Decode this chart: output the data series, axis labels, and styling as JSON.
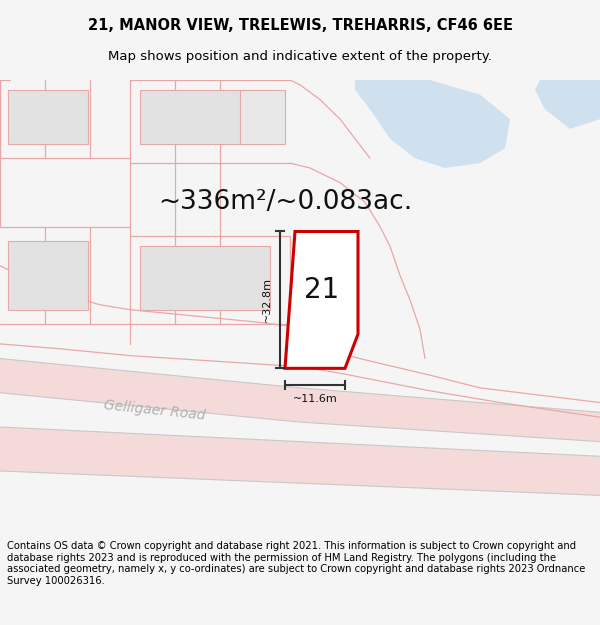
{
  "title_line1": "21, MANOR VIEW, TRELEWIS, TREHARRIS, CF46 6EE",
  "title_line2": "Map shows position and indicative extent of the property.",
  "area_text": "~336m²/~0.083ac.",
  "plot_number": "21",
  "dim_height": "~32.8m",
  "dim_width": "~11.6m",
  "road_label": "Gelligaer Road",
  "footer_text": "Contains OS data © Crown copyright and database right 2021. This information is subject to Crown copyright and database rights 2023 and is reproduced with the permission of HM Land Registry. The polygons (including the associated geometry, namely x, y co-ordinates) are subject to Crown copyright and database rights 2023 Ordnance Survey 100026316.",
  "bg_color": "#f5f5f5",
  "map_bg": "#ffffff",
  "plot_fill": "#ffffff",
  "plot_edge": "#cc0000",
  "building_fill": "#d8d8d8",
  "road_color": "#f5c0c0",
  "road_line_color": "#c8c8c8",
  "water_fill": "#cfe0ef",
  "dim_line_color": "#333333",
  "pink_line": "#e8a8a8",
  "title_fontsize": 10.5,
  "subtitle_fontsize": 9.5,
  "area_fontsize": 19,
  "number_fontsize": 20,
  "footer_fontsize": 7.2
}
